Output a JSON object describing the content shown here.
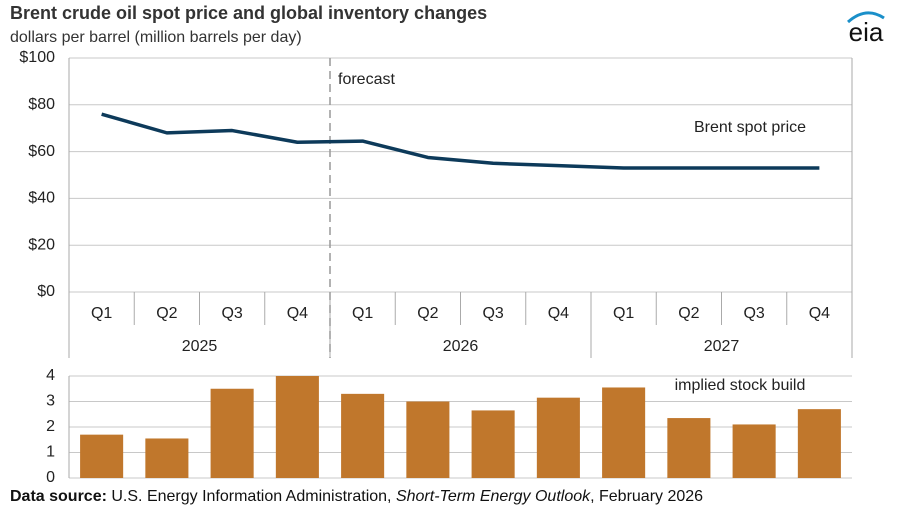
{
  "logo": "eia",
  "source": {
    "label": "Data source:",
    "text": "U.S. Energy Information Administration,",
    "publication": "Short-Term Energy Outlook",
    "date": ", February 2026"
  },
  "chart_data": [
    {
      "type": "line",
      "title": "Brent crude oil spot price and global inventory changes",
      "subtitle": "dollars per barrel (million barrels per day)",
      "annotation": "forecast",
      "categories": [
        "Q1",
        "Q2",
        "Q3",
        "Q4",
        "Q1",
        "Q2",
        "Q3",
        "Q4",
        "Q1",
        "Q2",
        "Q3",
        "Q4"
      ],
      "x_groups": [
        "2025",
        "2026",
        "2027"
      ],
      "series": [
        {
          "name": "Brent spot price",
          "color": "#0d3a5a",
          "values": [
            76,
            68,
            69,
            64,
            64.5,
            57.5,
            55,
            54,
            53,
            53,
            53,
            53
          ]
        }
      ],
      "ylim": [
        0,
        100
      ],
      "yticks": [
        {
          "value": 0,
          "label": "$0"
        },
        {
          "value": 20,
          "label": "$20"
        },
        {
          "value": 40,
          "label": "$40"
        },
        {
          "value": 60,
          "label": "$60"
        },
        {
          "value": 80,
          "label": "$80"
        },
        {
          "value": 100,
          "label": "$100"
        }
      ],
      "grid": true
    },
    {
      "type": "bar",
      "series": [
        {
          "name": "implied stock build",
          "color": "#c0772c",
          "values": [
            1.7,
            1.55,
            3.5,
            4.0,
            3.3,
            3.0,
            2.65,
            3.15,
            3.55,
            2.35,
            2.1,
            2.7
          ]
        }
      ],
      "ylim": [
        0,
        4
      ],
      "yticks": [
        0,
        1,
        2,
        3,
        4
      ],
      "grid": true
    }
  ]
}
